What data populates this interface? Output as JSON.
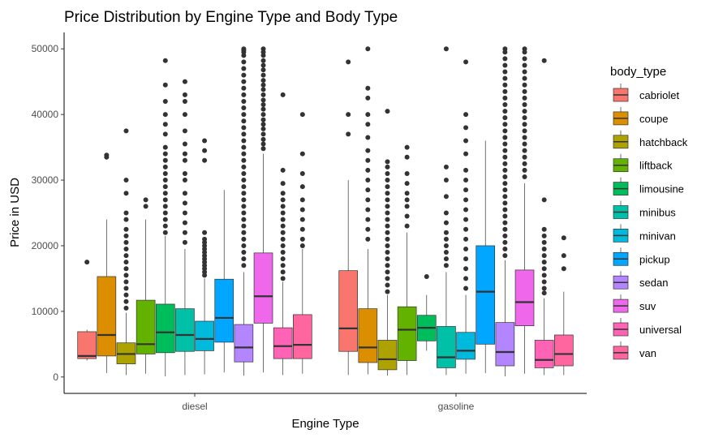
{
  "chart_data": {
    "type": "boxplot",
    "title": "Price Distribution by Engine Type and Body Type",
    "xlabel": "Engine Type",
    "ylabel": "Price in USD",
    "ylim": [
      -2500,
      52500
    ],
    "yticks": [
      0,
      10000,
      20000,
      30000,
      40000,
      50000
    ],
    "yticklabels": [
      "0",
      "10000",
      "20000",
      "30000",
      "40000",
      "50000"
    ],
    "grid": false,
    "legend_title": "body_type",
    "legend_position": "right",
    "categories": [
      "diesel",
      "gasoline"
    ],
    "series": [
      {
        "name": "cabriolet",
        "color": "#F8766D",
        "boxes": [
          {
            "whisker_low": 2500,
            "q1": 2800,
            "median": 3200,
            "q3": 6900,
            "whisker_high": 7200,
            "outliers": [
              17500
            ]
          },
          {
            "whisker_low": 300,
            "q1": 3900,
            "median": 7400,
            "q3": 16200,
            "whisker_high": 30000,
            "outliers": [
              37000,
              40000,
              48000
            ]
          }
        ]
      },
      {
        "name": "coupe",
        "color": "#DB8E00",
        "boxes": [
          {
            "whisker_low": 600,
            "q1": 3200,
            "median": 6400,
            "q3": 15300,
            "whisker_high": 24000,
            "outliers": [
              33500,
              33800
            ]
          },
          {
            "whisker_low": 400,
            "q1": 2200,
            "median": 4500,
            "q3": 10400,
            "whisker_high": 19500,
            "outliers": [
              21000,
              22500,
              24000,
              25500,
              27000,
              28500,
              30000,
              31500,
              33000,
              34500,
              36500,
              38500,
              40000,
              42500,
              44000,
              50000
            ]
          }
        ]
      },
      {
        "name": "hatchback",
        "color": "#AEA200",
        "boxes": [
          {
            "whisker_low": 300,
            "q1": 2000,
            "median": 3500,
            "q3": 5200,
            "whisker_high": 9800,
            "outliers": [
              10500,
              11500,
              12500,
              13500,
              14500,
              15500,
              16500,
              17500,
              18500,
              19500,
              20500,
              21500,
              22500,
              24000,
              25000,
              28000,
              30000,
              37500
            ]
          },
          {
            "whisker_low": 200,
            "q1": 1100,
            "median": 2700,
            "q3": 5600,
            "whisker_high": 12500,
            "outliers": [
              13000,
              14000,
              15000,
              16000,
              17000,
              18000,
              19000,
              20000,
              21000,
              22000,
              23000,
              24000,
              25000,
              26000,
              27000,
              28000,
              29000,
              30000,
              31000,
              32000,
              32800,
              40500
            ]
          }
        ]
      },
      {
        "name": "liftback",
        "color": "#64B200",
        "boxes": [
          {
            "whisker_low": 500,
            "q1": 3500,
            "median": 5000,
            "q3": 11700,
            "whisker_high": 24000,
            "outliers": [
              26000,
              27000
            ]
          },
          {
            "whisker_low": 300,
            "q1": 2500,
            "median": 7200,
            "q3": 10700,
            "whisker_high": 22000,
            "outliers": [
              23000,
              24500,
              26000,
              27000,
              28000,
              29500,
              31000,
              33500,
              35000
            ]
          }
        ]
      },
      {
        "name": "limousine",
        "color": "#00BD5C",
        "boxes": [
          {
            "whisker_low": 100,
            "q1": 3700,
            "median": 6800,
            "q3": 11100,
            "whisker_high": 21500,
            "outliers": [
              22000,
              23000,
              24000,
              25000,
              26000,
              27000,
              28000,
              29000,
              30000,
              31000,
              32000,
              33000,
              34000,
              35000,
              37000,
              38500,
              40000,
              42000,
              44500,
              48200
            ]
          },
          {
            "whisker_low": 4000,
            "q1": 5500,
            "median": 7500,
            "q3": 9400,
            "whisker_high": 12500,
            "outliers": [
              15300
            ]
          }
        ]
      },
      {
        "name": "minibus",
        "color": "#00C1A7",
        "boxes": [
          {
            "whisker_low": 300,
            "q1": 3900,
            "median": 6400,
            "q3": 10400,
            "whisker_high": 19500,
            "outliers": [
              20500,
              22000,
              23500,
              25000,
              26500,
              28000,
              30000,
              31000,
              33000,
              34000,
              35500,
              37500,
              40000,
              42000,
              43000,
              45000
            ]
          },
          {
            "whisker_low": 300,
            "q1": 1400,
            "median": 3000,
            "q3": 7700,
            "whisker_high": 16000,
            "outliers": [
              17000,
              18000,
              19000,
              20000,
              21000,
              22000,
              23500,
              25000,
              27500,
              30000,
              32000,
              50000
            ]
          }
        ]
      },
      {
        "name": "minivan",
        "color": "#00BADE",
        "boxes": [
          {
            "whisker_low": 400,
            "q1": 4000,
            "median": 5800,
            "q3": 8500,
            "whisker_high": 15000,
            "outliers": [
              15500,
              16000,
              16500,
              17000,
              17500,
              18000,
              18500,
              19000,
              19500,
              20000,
              20500,
              21000,
              22000,
              33000,
              34500,
              36000
            ]
          },
          {
            "whisker_low": 500,
            "q1": 2700,
            "median": 4000,
            "q3": 6800,
            "whisker_high": 12500,
            "outliers": [
              13500,
              15000,
              16500,
              18000,
              19500,
              21000,
              22500,
              24000,
              25500,
              27000,
              28500,
              30000,
              31500,
              34000,
              36000,
              38000,
              40000,
              48000
            ]
          }
        ]
      },
      {
        "name": "pickup",
        "color": "#00A6FF",
        "boxes": [
          {
            "whisker_low": 700,
            "q1": 5300,
            "median": 9000,
            "q3": 14900,
            "whisker_high": 28500,
            "outliers": []
          },
          {
            "whisker_low": 600,
            "q1": 5000,
            "median": 13000,
            "q3": 20000,
            "whisker_high": 36000,
            "outliers": []
          }
        ]
      },
      {
        "name": "sedan",
        "color": "#B385FF",
        "boxes": [
          {
            "whisker_low": 200,
            "q1": 2300,
            "median": 4500,
            "q3": 8000,
            "whisker_high": 16000,
            "outliers": [
              17000,
              18000,
              19000,
              20000,
              21000,
              22000,
              23000,
              24000,
              25000,
              26000,
              27000,
              28000,
              29000,
              30000,
              31000,
              32000,
              33000,
              34000,
              35000,
              36000,
              37000,
              38000,
              39000,
              40000,
              41000,
              42000,
              43000,
              44000,
              45000,
              46000,
              47000,
              48000,
              49000,
              49500,
              49800,
              50000
            ]
          },
          {
            "whisker_low": 100,
            "q1": 1700,
            "median": 3800,
            "q3": 8300,
            "whisker_high": 17800,
            "outliers": [
              18500,
              19500,
              20500,
              21500,
              22500,
              23500,
              24500,
              25500,
              26500,
              27500,
              28500,
              29500,
              30500,
              31500,
              32500,
              33500,
              34500,
              35500,
              36500,
              37500,
              38500,
              39500,
              40500,
              41500,
              42500,
              43500,
              44500,
              45500,
              46500,
              47500,
              48500,
              49500,
              50000
            ]
          }
        ]
      },
      {
        "name": "suv",
        "color": "#EF67EB",
        "boxes": [
          {
            "whisker_low": 700,
            "q1": 8200,
            "median": 12300,
            "q3": 18900,
            "whisker_high": 34000,
            "outliers": [
              34800,
              35500,
              36200,
              37000,
              37800,
              38500,
              39200,
              40000,
              40800,
              41500,
              42200,
              43000,
              43800,
              44500,
              45200,
              46000,
              46800,
              47500,
              48200,
              49000,
              49500,
              50000
            ]
          },
          {
            "whisker_low": 500,
            "q1": 7800,
            "median": 11400,
            "q3": 16300,
            "whisker_high": 29500,
            "outliers": [
              30500,
              31500,
              32500,
              33500,
              34500,
              35500,
              36500,
              37500,
              38500,
              39500,
              40500,
              41500,
              42500,
              43500,
              44500,
              45500,
              46500,
              47500,
              48500,
              49500,
              50000
            ]
          }
        ]
      },
      {
        "name": "universal",
        "color": "#FF63B6",
        "boxes": [
          {
            "whisker_low": 300,
            "q1": 2800,
            "median": 4700,
            "q3": 7500,
            "whisker_high": 14500,
            "outliers": [
              15000,
              16000,
              17000,
              18000,
              19000,
              20000,
              21000,
              22000,
              23000,
              24000,
              25000,
              26000,
              27000,
              28000,
              29500,
              31500,
              43000
            ]
          },
          {
            "whisker_low": 300,
            "q1": 1400,
            "median": 2600,
            "q3": 5600,
            "whisker_high": 12000,
            "outliers": [
              12800,
              13500,
              14500,
              15500,
              16500,
              17500,
              18500,
              19500,
              20500,
              21500,
              22500,
              27000,
              48200
            ]
          }
        ]
      },
      {
        "name": "van",
        "color": "#FF66A0",
        "boxes": [
          {
            "whisker_low": 500,
            "q1": 2800,
            "median": 4900,
            "q3": 9500,
            "whisker_high": 19500,
            "outliers": [
              20000,
              21000,
              22500,
              24000,
              25500,
              27000,
              29000,
              31000,
              34000,
              40000
            ]
          },
          {
            "whisker_low": 300,
            "q1": 1700,
            "median": 3500,
            "q3": 6400,
            "whisker_high": 13000,
            "outliers": [
              16500,
              18500,
              21200
            ]
          }
        ]
      }
    ]
  }
}
